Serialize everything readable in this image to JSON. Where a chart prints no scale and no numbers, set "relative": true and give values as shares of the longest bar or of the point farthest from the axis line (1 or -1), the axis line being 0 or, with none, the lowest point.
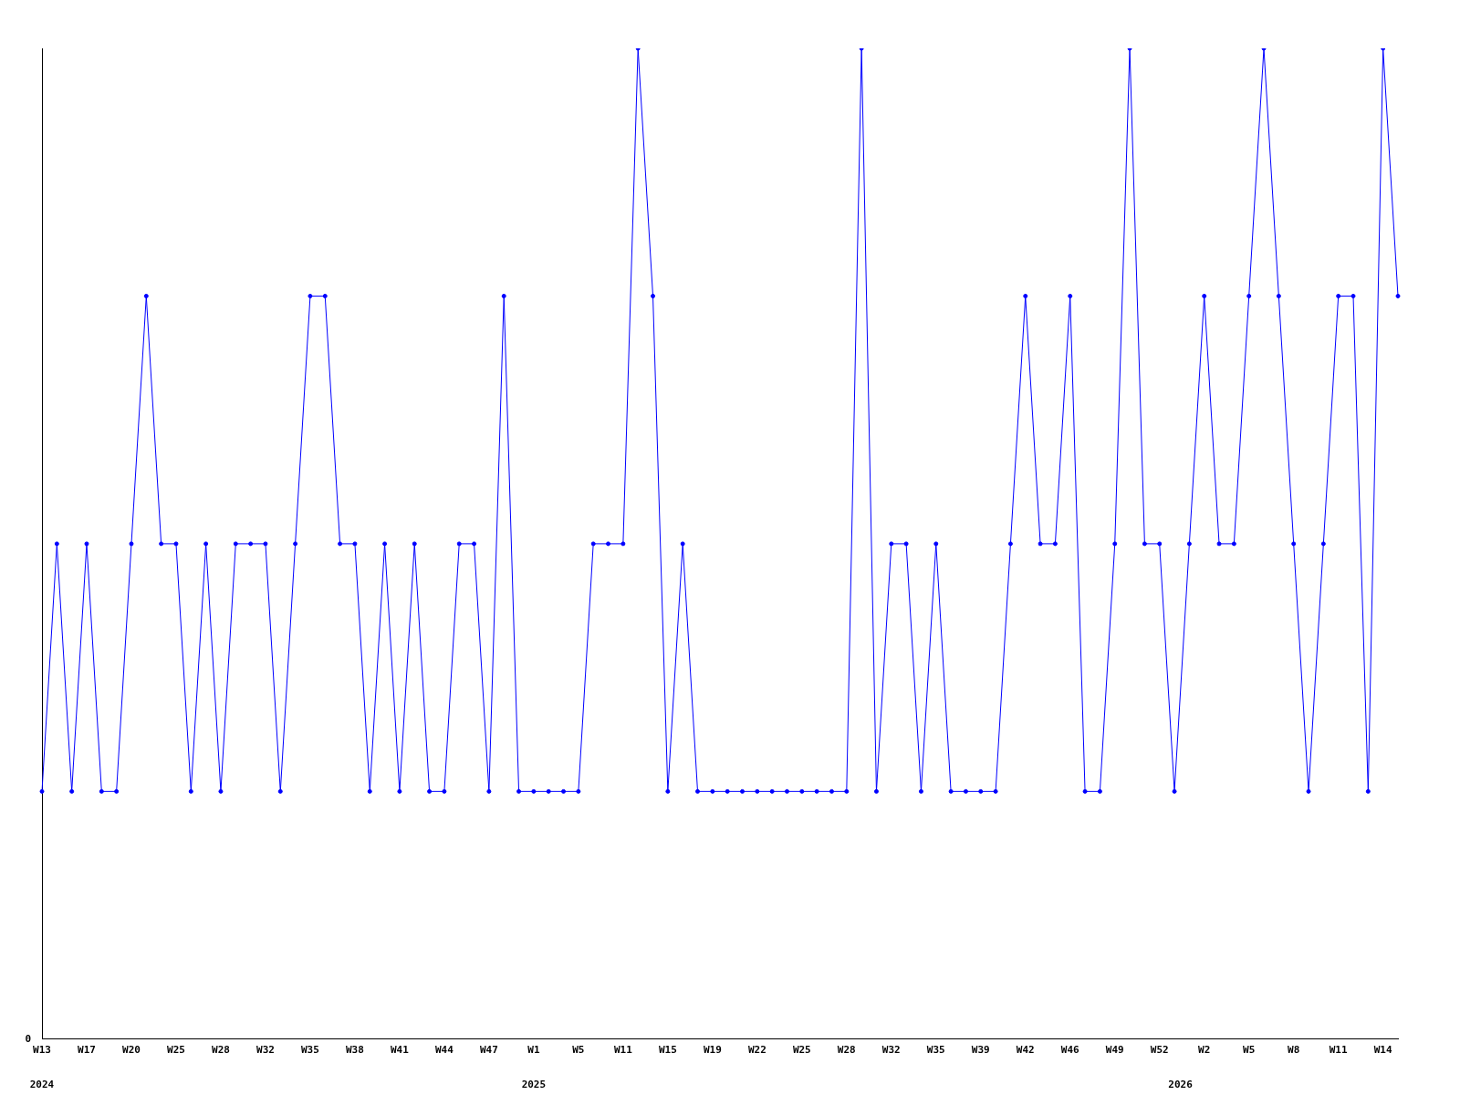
{
  "chart_data": {
    "type": "line",
    "relative": true,
    "categories": [
      "W13",
      null,
      null,
      "W17",
      null,
      null,
      "W20",
      null,
      null,
      "W25",
      null,
      null,
      "W28",
      null,
      null,
      "W32",
      null,
      null,
      "W35",
      null,
      null,
      "W38",
      null,
      null,
      "W41",
      null,
      null,
      "W44",
      null,
      null,
      "W47",
      null,
      null,
      "W1",
      null,
      null,
      "W5",
      null,
      null,
      "W11",
      null,
      null,
      "W15",
      null,
      null,
      "W19",
      null,
      null,
      "W22",
      null,
      null,
      "W25",
      null,
      null,
      "W28",
      null,
      null,
      "W32",
      null,
      null,
      "W35",
      null,
      null,
      "W39",
      null,
      null,
      "W42",
      null,
      null,
      "W46",
      null,
      null,
      "W49",
      null,
      null,
      "W52",
      null,
      null,
      "W2",
      null,
      null,
      "W5",
      null,
      null,
      "W8",
      null,
      null,
      "W11",
      null,
      null,
      "W14",
      null
    ],
    "series": [
      {
        "color": "#0000ff",
        "values": [
          0.25,
          0.5,
          0.25,
          0.5,
          0.25,
          0.25,
          0.5,
          0.75,
          0.5,
          0.5,
          0.25,
          0.5,
          0.25,
          0.5,
          0.5,
          0.5,
          0.25,
          0.5,
          0.75,
          0.75,
          0.5,
          0.5,
          0.25,
          0.5,
          0.25,
          0.5,
          0.25,
          0.25,
          0.5,
          0.5,
          0.25,
          0.75,
          0.25,
          0.25,
          0.25,
          0.25,
          0.25,
          0.5,
          0.5,
          0.5,
          1,
          0.75,
          0.25,
          0.5,
          0.25,
          0.25,
          0.25,
          0.25,
          0.25,
          0.25,
          0.25,
          0.25,
          0.25,
          0.25,
          0.25,
          1,
          0.25,
          0.5,
          0.5,
          0.25,
          0.5,
          0.25,
          0.25,
          0.25,
          0.25,
          0.5,
          0.75,
          0.5,
          0.5,
          0.75,
          0.25,
          0.25,
          0.5,
          1,
          0.5,
          0.5,
          0.25,
          0.5,
          0.75,
          0.5,
          0.5,
          0.75,
          1,
          0.75,
          0.5,
          0.25,
          0.5,
          0.75,
          0.75,
          0.25,
          1,
          0.75
        ]
      }
    ],
    "annotations": [
      "0",
      "2024",
      "2025",
      "2026"
    ],
    "marker": "circle",
    "line_style": "solid",
    "grid": false,
    "legend": false
  }
}
